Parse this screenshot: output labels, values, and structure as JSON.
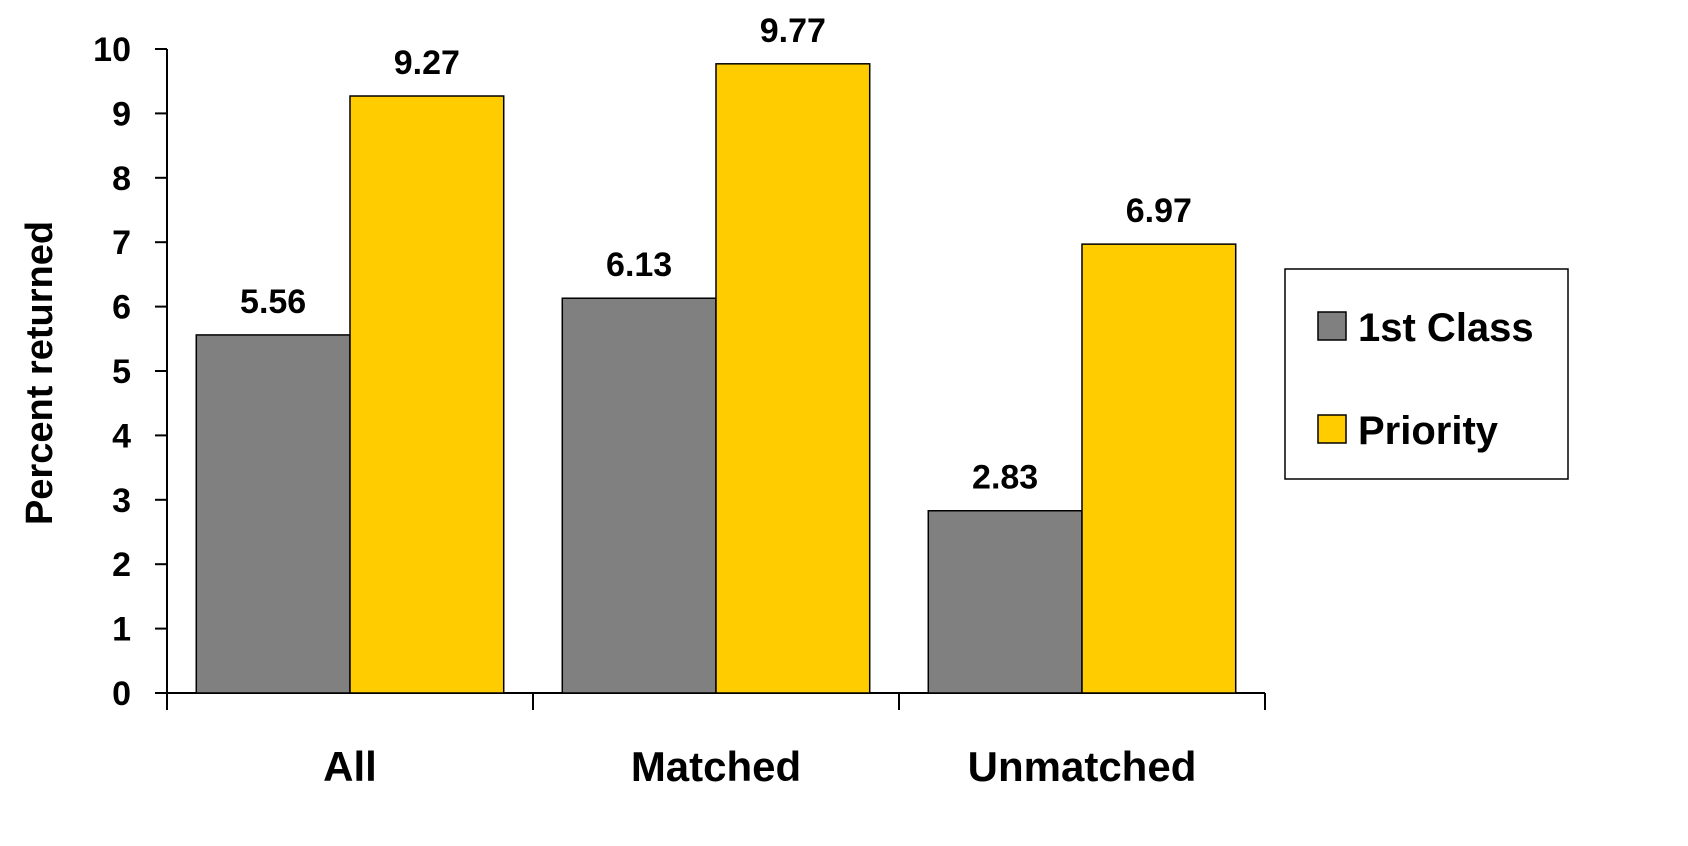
{
  "chart_data": {
    "type": "bar",
    "categories": [
      "All",
      "Matched",
      "Unmatched"
    ],
    "series": [
      {
        "name": "1st Class",
        "values": [
          5.56,
          6.13,
          2.83
        ],
        "color": "#808080"
      },
      {
        "name": "Priority",
        "values": [
          9.27,
          9.77,
          6.97
        ],
        "color": "#FFCC00"
      }
    ],
    "data_labels": [
      [
        "5.56",
        "6.13",
        "2.83"
      ],
      [
        "9.27",
        "9.77",
        "6.97"
      ]
    ],
    "ylabel": "Percent returned",
    "xlabel": "",
    "ylim": [
      0,
      10
    ],
    "yticks": [
      "0",
      "1",
      "2",
      "3",
      "4",
      "5",
      "6",
      "7",
      "8",
      "9",
      "10"
    ],
    "grid": false,
    "legend_position": "right"
  }
}
